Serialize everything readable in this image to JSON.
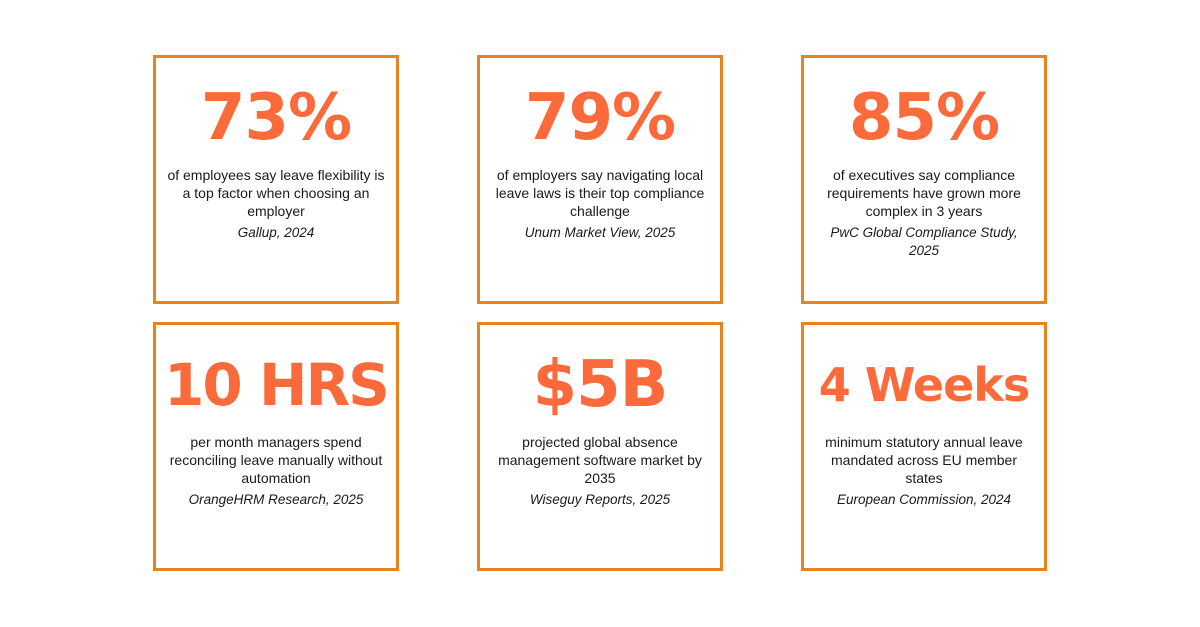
{
  "colors": {
    "accent": "#fb6a3a",
    "border": "#e8831e",
    "text": "#1a1a1a",
    "background": "#ffffff"
  },
  "cards": [
    {
      "stat": "73%",
      "description": "of employees say leave flexibility is a top factor when choosing an employer",
      "source": "Gallup, 2024"
    },
    {
      "stat": "79%",
      "description": "of employers say navigating local leave laws is their top compliance challenge",
      "source": "Unum Market View, 2025"
    },
    {
      "stat": "85%",
      "description": "of executives say compliance requirements have grown more complex in 3 years",
      "source": "PwC Global Compliance Study, 2025"
    },
    {
      "stat": "10 HRS",
      "description": "per month managers spend reconciling leave manually without automation",
      "source": "OrangeHRM Research, 2025"
    },
    {
      "stat": "$5B",
      "description": "projected global absence management software market by 2035",
      "source": "Wiseguy Reports, 2025"
    },
    {
      "stat": "4 Weeks",
      "description": "minimum statutory annual leave mandated across EU member states",
      "source": "European Commission, 2024"
    }
  ]
}
